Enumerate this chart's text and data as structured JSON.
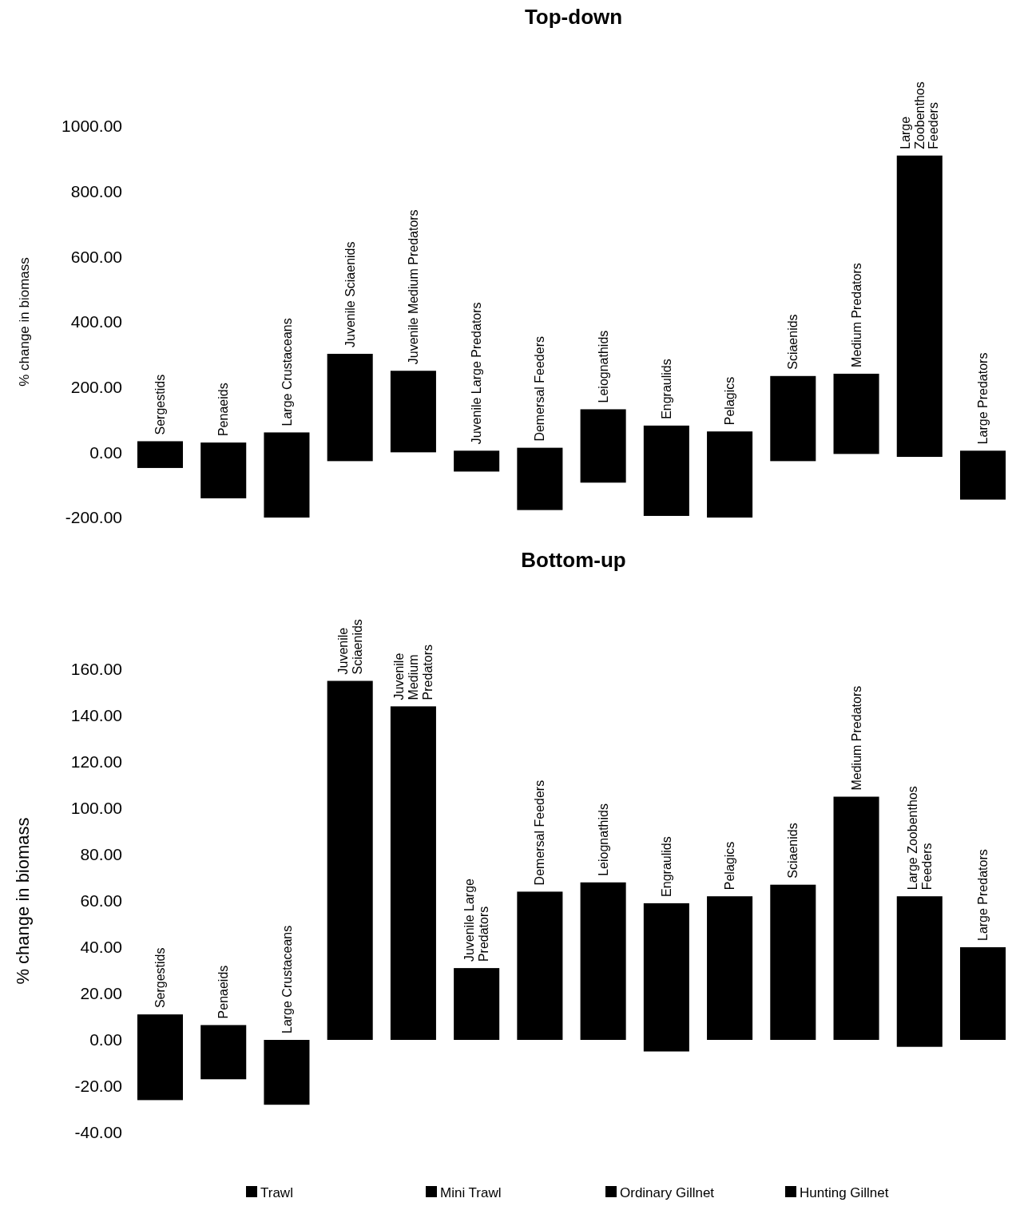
{
  "chart_data": [
    {
      "type": "bar",
      "title": "Top-down",
      "ylabel": "% change in biomass",
      "categories": [
        "Sergestids",
        "Penaeids",
        "Large Crustaceans",
        "Juvenile Sciaenids",
        "Juvenile Medium Predators",
        "Juvenile Large Predators",
        "Demersal Feeders",
        "Leiognathids",
        "Engraulids",
        "Pelagics",
        "Sciaenids",
        "Medium Predators",
        "Large\nZoobenthos\nFeeders",
        "Large Predators"
      ],
      "ylim": [
        -200,
        1000
      ],
      "yticks": [
        {
          "value": -200,
          "label": "-200.00"
        },
        {
          "value": 0,
          "label": "0.00"
        },
        {
          "value": 200,
          "label": "200.00"
        },
        {
          "value": 400,
          "label": "400.00"
        },
        {
          "value": 600,
          "label": "600.00"
        },
        {
          "value": 800,
          "label": "800.00"
        },
        {
          "value": 1000,
          "label": "1000.00"
        }
      ],
      "series": [
        {
          "color": "#000000",
          "base": [
            -48,
            -141,
            -200,
            -27,
            0,
            -59,
            -177,
            -93,
            -195,
            -200,
            -27,
            -5,
            -14,
            -145
          ],
          "values": [
            82,
            171,
            261,
            329,
            250,
            64,
            191,
            225,
            277,
            264,
            261,
            246,
            924,
            150
          ]
        }
      ]
    },
    {
      "type": "bar",
      "title": "Bottom-up",
      "ylabel": "% change in biomass",
      "categories": [
        "Sergestids",
        "Penaeids",
        "Large Crustaceans",
        "Juvenile\nSciaenids",
        "Juvenile\nMedium\nPredators",
        "Juvenile Large\nPredators",
        "Demersal Feeders",
        "Leiognathids",
        "Engraulids",
        "Pelagics",
        "Sciaenids",
        "Medium Predators",
        "Large Zoobenthos\nFeeders",
        "Large Predators"
      ],
      "ylim": [
        -40,
        160
      ],
      "yticks": [
        {
          "value": -40,
          "label": "-40.00"
        },
        {
          "value": -20,
          "label": "-20.00"
        },
        {
          "value": 0,
          "label": "0.00"
        },
        {
          "value": 20,
          "label": "20.00"
        },
        {
          "value": 40,
          "label": "40.00"
        },
        {
          "value": 60,
          "label": "60.00"
        },
        {
          "value": 80,
          "label": "80.00"
        },
        {
          "value": 100,
          "label": "100.00"
        },
        {
          "value": 120,
          "label": "120.00"
        },
        {
          "value": 140,
          "label": "140.00"
        },
        {
          "value": 160,
          "label": "160.00"
        }
      ],
      "legend": "bottom",
      "series": [
        {
          "color": "#000000",
          "base": [
            -26,
            -17,
            -28,
            0,
            0,
            0,
            0,
            0,
            -5,
            0,
            0,
            0,
            -3,
            0
          ],
          "values": [
            37,
            23.4,
            28,
            155,
            144,
            31,
            64,
            68,
            64,
            62,
            67,
            105,
            65,
            40
          ]
        },
        {
          "name": "Trawl",
          "color": "#000000",
          "values": [
            null,
            null,
            null,
            null,
            null,
            null,
            null,
            null,
            null,
            null,
            null,
            null,
            null,
            null
          ]
        },
        {
          "name": "Mini Trawl",
          "color": "#000000",
          "values": [
            null,
            null,
            null,
            null,
            null,
            null,
            null,
            null,
            null,
            null,
            null,
            null,
            null,
            null
          ]
        },
        {
          "name": "Ordinary Gillnet",
          "color": "#000000",
          "values": [
            null,
            null,
            null,
            null,
            null,
            null,
            null,
            null,
            null,
            null,
            null,
            null,
            null,
            null
          ]
        },
        {
          "name": "Hunting Gillnet",
          "color": "#000000",
          "values": [
            null,
            null,
            null,
            null,
            null,
            null,
            null,
            null,
            null,
            null,
            null,
            null,
            null,
            null
          ]
        }
      ]
    }
  ]
}
